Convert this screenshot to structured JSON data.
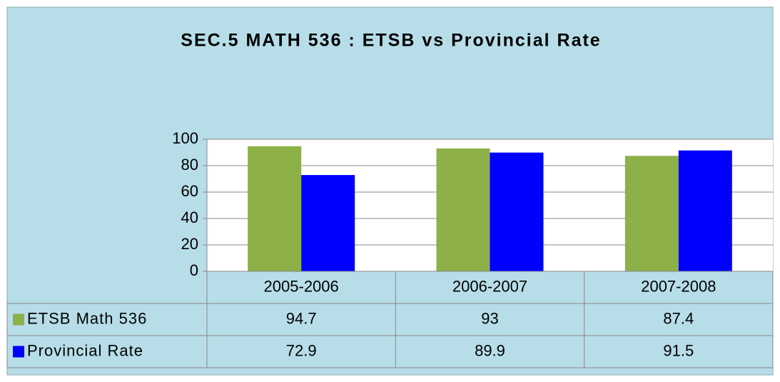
{
  "chart_data": {
    "type": "bar",
    "title": "SEC.5  MATH 536 : ETSB vs Provincial Rate",
    "categories": [
      "2005-2006",
      "2006-2007",
      "2007-2008"
    ],
    "series": [
      {
        "name": "ETSB Math 536",
        "color": "#8db049",
        "values": [
          94.7,
          93,
          87.4
        ]
      },
      {
        "name": "Provincial Rate",
        "color": "#0000ff",
        "values": [
          72.9,
          89.9,
          91.5
        ]
      }
    ],
    "ylim": [
      0,
      100
    ],
    "yticks": [
      0,
      20,
      40,
      60,
      80,
      100
    ],
    "grid": true,
    "data_table": true
  }
}
